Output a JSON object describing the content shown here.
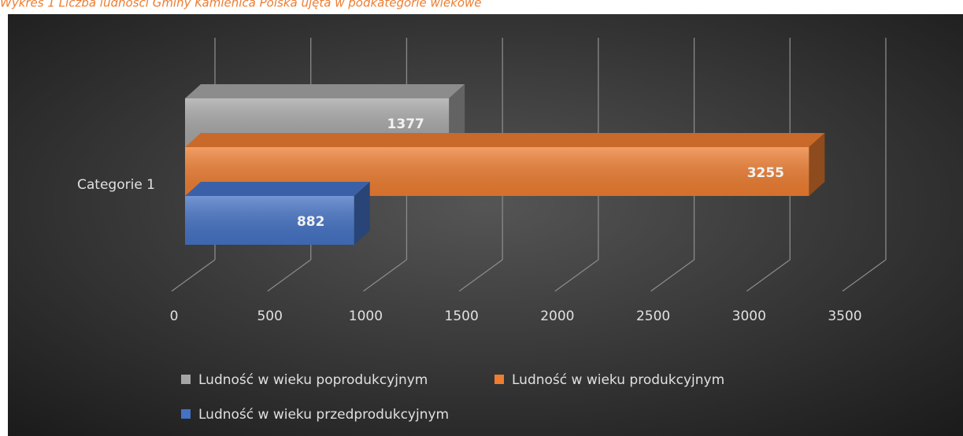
{
  "chart_data": {
    "type": "bar3d_horizontal",
    "title": "Wykres 1 Liczba ludności Gminy Kamienica Polska ujęta w podkategorie wiekowe",
    "categories": [
      "Categorie 1"
    ],
    "series": [
      {
        "name": "Ludność w wieku poprodukcyjnym",
        "color": "#a5a5a5",
        "values": [
          1377
        ]
      },
      {
        "name": "Ludność w wieku produkcyjnym",
        "color": "#ed7d31",
        "values": [
          3255
        ]
      },
      {
        "name": "Ludność w wieku przedprodukcyjnym",
        "color": "#4472c4",
        "values": [
          882
        ]
      }
    ],
    "xlim": [
      0,
      3500
    ],
    "xticks": [
      0,
      500,
      1000,
      1500,
      2000,
      2500,
      3000,
      3500
    ],
    "grid": true,
    "legend": "bottom"
  }
}
